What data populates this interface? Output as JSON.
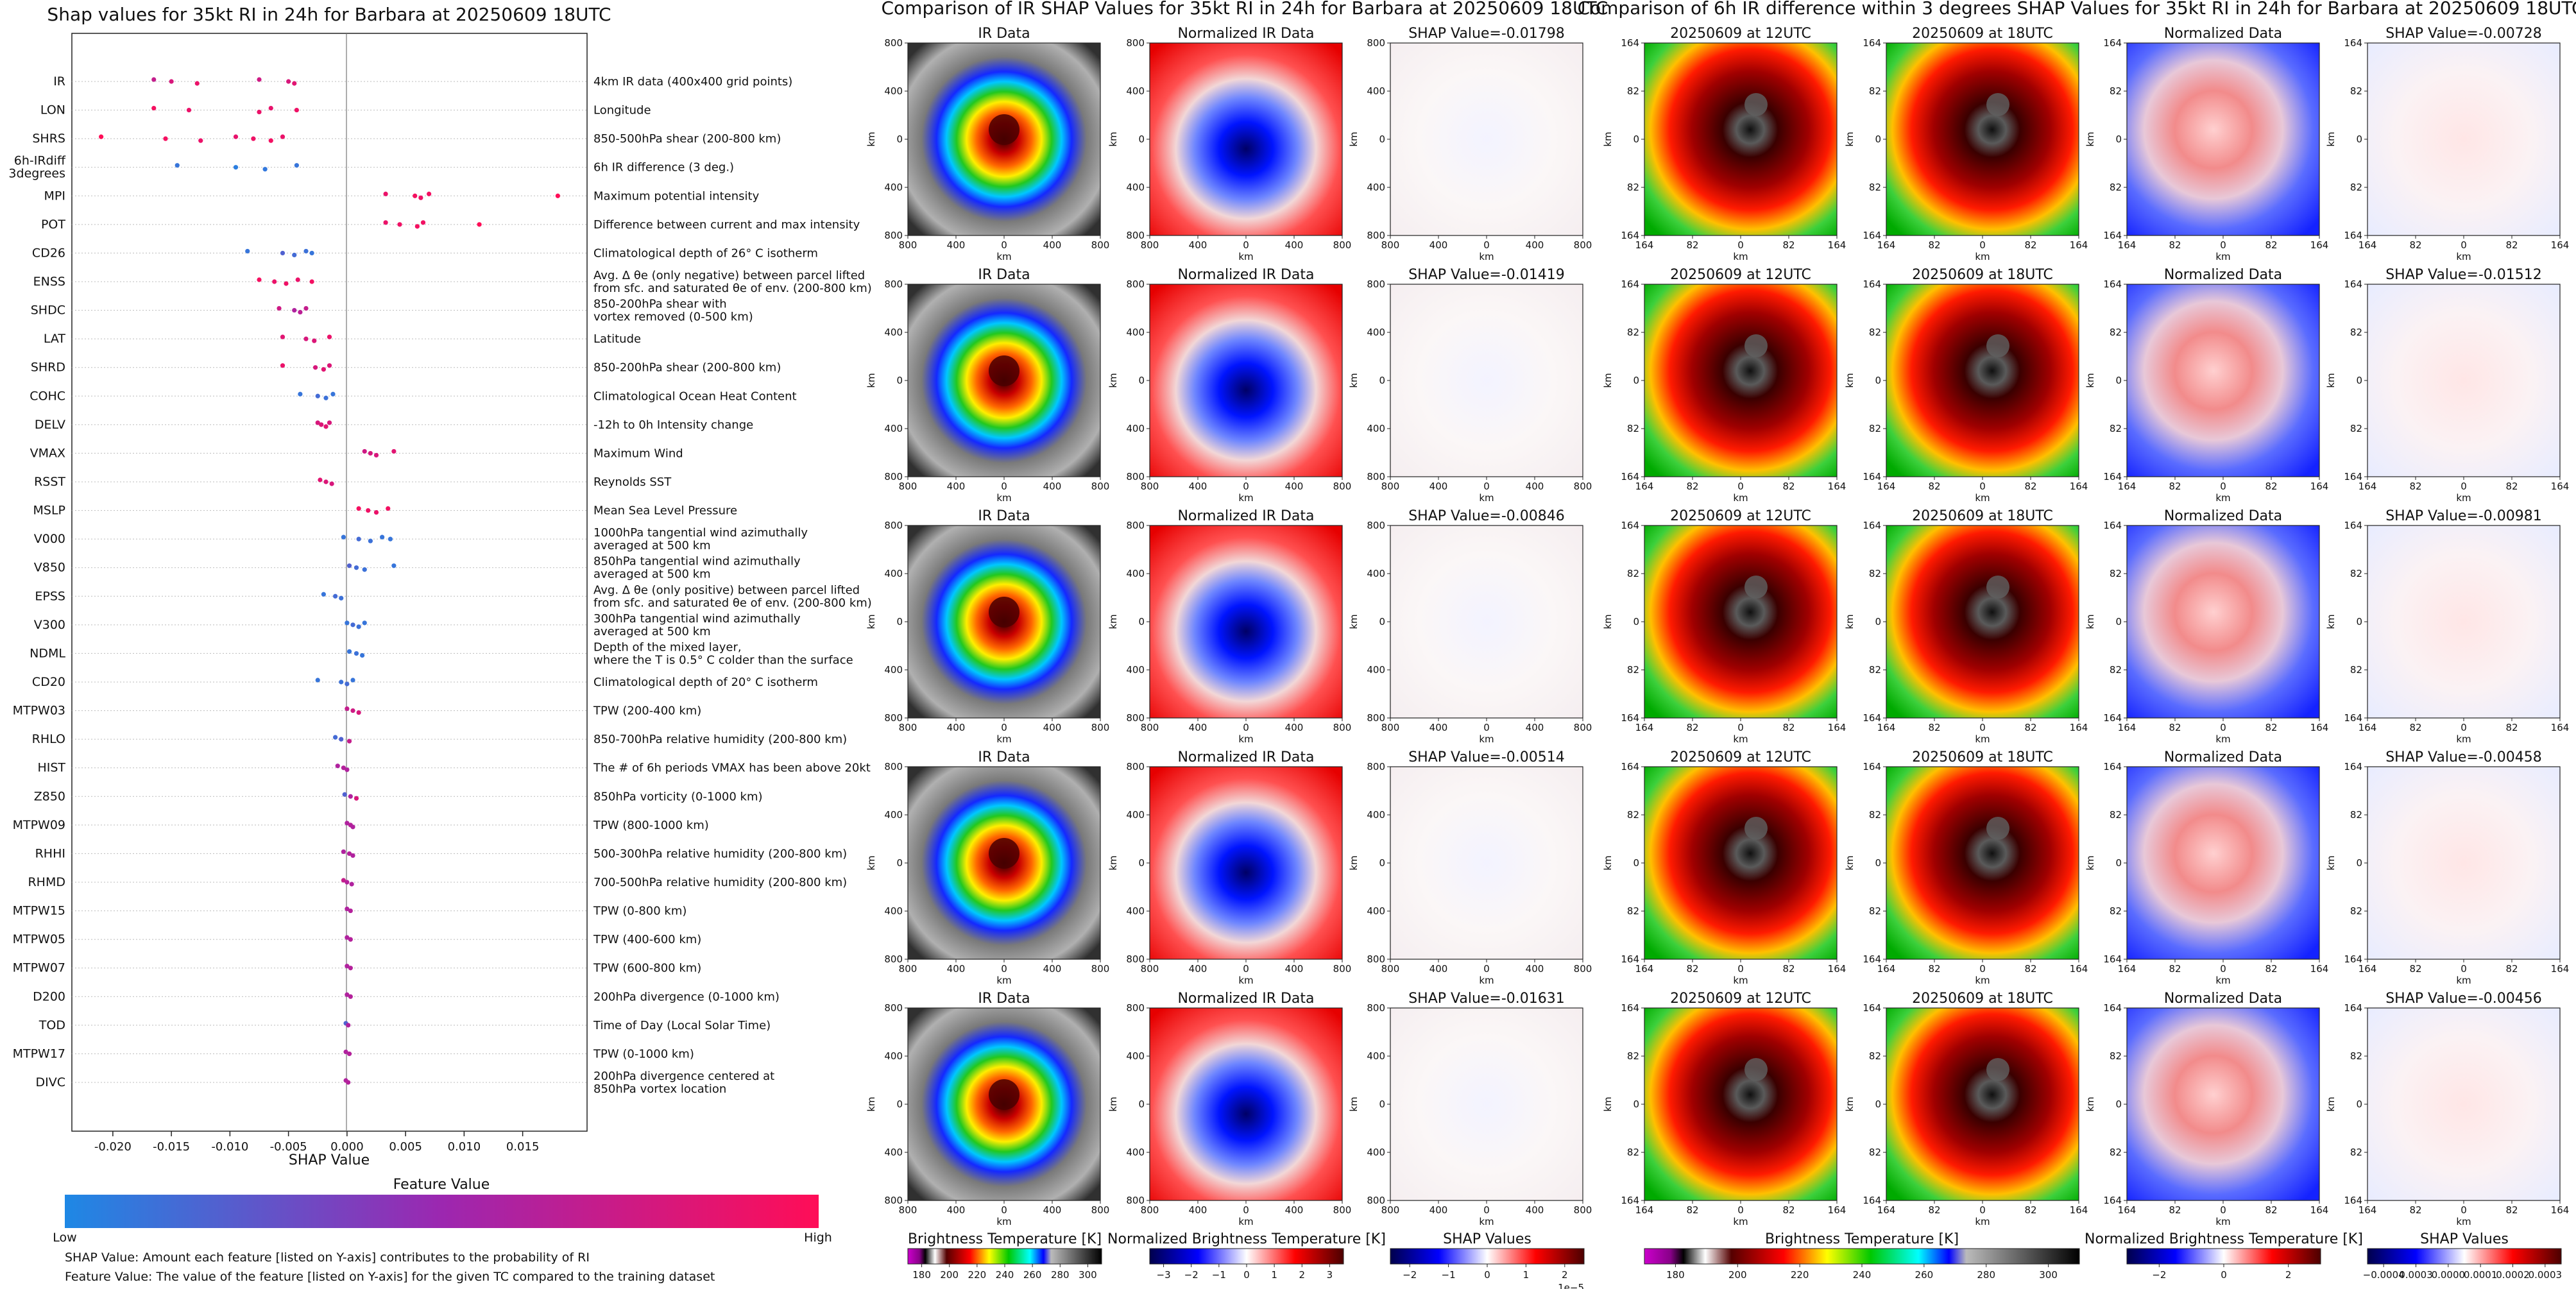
{
  "shap_summary": {
    "title": "Shap values for 35kt RI in 24h for Barbara at 20250609 18UTC",
    "xlabel": "SHAP Value",
    "x_ticks": [
      "-0.020",
      "-0.015",
      "-0.010",
      "-0.005",
      "0.000",
      "0.005",
      "0.010",
      "0.015"
    ],
    "colorbar_title": "Feature Value",
    "colorbar_low": "Low",
    "colorbar_high": "High",
    "colors": {
      "low": "#1e88e5",
      "mid": "#9c27b0",
      "high": "#ff0d57"
    },
    "footnote_1": "SHAP Value: Amount each feature [listed on Y-axis] contributes to the probability of RI",
    "footnote_2": "Feature Value: The value of the feature [listed on Y-axis] for the given TC compared to the training dataset"
  },
  "ir_panel": {
    "title": "Comparison of IR SHAP Values for 35kt RI in 24h for Barbara at 20250609 18UTC",
    "col_titles": [
      "IR Data",
      "Normalized IR Data"
    ],
    "shap_titles": [
      "SHAP Value=-0.01798",
      "SHAP Value=-0.01419",
      "SHAP Value=-0.00846",
      "SHAP Value=-0.00514",
      "SHAP Value=-0.01631"
    ],
    "axis_label": "km",
    "x_ticks": [
      "800",
      "400",
      "0",
      "400",
      "800"
    ],
    "y_ticks": [
      "800",
      "400",
      "0",
      "400",
      "800"
    ],
    "cb1": {
      "label": "Brightness Temperature [K]",
      "ticks": [
        "180",
        "200",
        "220",
        "240",
        "260",
        "280",
        "300"
      ]
    },
    "cb2": {
      "label": "Normalized Brightness Temperature [K]",
      "ticks": [
        "−3",
        "−2",
        "−1",
        "0",
        "1",
        "2",
        "3"
      ]
    },
    "cb3": {
      "label": "SHAP Values",
      "ticks": [
        "−2",
        "−1",
        "0",
        "1",
        "2"
      ],
      "exponent": "1e−5"
    }
  },
  "diff_panel": {
    "title": "Comparison of 6h IR difference within 3 degrees SHAP Values for 35kt RI in 24h for Barbara at 20250609 18UTC",
    "col_titles": [
      "20250609 at 12UTC",
      "20250609 at 18UTC",
      "Normalized Data"
    ],
    "shap_titles": [
      "SHAP Value=-0.00728",
      "SHAP Value=-0.01512",
      "SHAP Value=-0.00981",
      "SHAP Value=-0.00458",
      "SHAP Value=-0.00456"
    ],
    "axis_label": "km",
    "x_ticks": [
      "164",
      "82",
      "0",
      "82",
      "164"
    ],
    "y_ticks": [
      "164",
      "82",
      "0",
      "82",
      "164"
    ],
    "cb1": {
      "label": "Brightness Temperature [K]",
      "ticks": [
        "180",
        "200",
        "220",
        "240",
        "260",
        "280",
        "300"
      ]
    },
    "cb2": {
      "label": "Normalized Brightness Temperature [K]",
      "ticks": [
        "−2",
        "0",
        "2"
      ]
    },
    "cb3": {
      "label": "SHAP Values",
      "ticks": [
        "−0.0004",
        "0.0003",
        "0.0000",
        "0.0001",
        "0.0002",
        "0.0003"
      ]
    }
  },
  "chart_data": {
    "type": "scatter",
    "title": "Shap values for 35kt RI in 24h for Barbara at 20250609 18UTC",
    "xlabel": "SHAP Value",
    "xlim": [
      -0.0235,
      0.0205
    ],
    "features": [
      {
        "name": "IR",
        "description": "4km IR data (400x400 grid points)",
        "points": [
          [
            -0.0165,
            0.7
          ],
          [
            -0.015,
            0.8
          ],
          [
            -0.0128,
            0.9
          ],
          [
            -0.0075,
            0.75
          ],
          [
            -0.005,
            0.8
          ],
          [
            -0.0045,
            0.85
          ]
        ]
      },
      {
        "name": "LON",
        "description": "Longitude",
        "points": [
          [
            -0.0165,
            0.95
          ],
          [
            -0.0135,
            0.9
          ],
          [
            -0.0075,
            0.9
          ],
          [
            -0.0065,
            0.88
          ],
          [
            -0.0043,
            0.92
          ]
        ]
      },
      {
        "name": "SHRS",
        "description": "850-500hPa shear (200-800 km)",
        "points": [
          [
            -0.021,
            1.0
          ],
          [
            -0.0155,
            0.95
          ],
          [
            -0.0125,
            0.9
          ],
          [
            -0.0095,
            0.88
          ],
          [
            -0.008,
            0.92
          ],
          [
            -0.0065,
            0.94
          ],
          [
            -0.0055,
            0.9
          ]
        ]
      },
      {
        "name": "6h-IRdiff\n3degrees",
        "description": "6h IR difference (3 deg.)",
        "points": [
          [
            -0.0145,
            0.1
          ],
          [
            -0.0095,
            0.05
          ],
          [
            -0.007,
            0.08
          ],
          [
            -0.0043,
            0.1
          ]
        ]
      },
      {
        "name": "MPI",
        "description": "Maximum potential intensity",
        "points": [
          [
            0.0033,
            0.9
          ],
          [
            0.0058,
            0.95
          ],
          [
            0.0063,
            0.92
          ],
          [
            0.007,
            0.94
          ],
          [
            0.018,
            1.0
          ]
        ]
      },
      {
        "name": "POT",
        "description": "Difference between current and max intensity",
        "points": [
          [
            0.0033,
            0.9
          ],
          [
            0.0045,
            0.92
          ],
          [
            0.006,
            0.95
          ],
          [
            0.0065,
            0.93
          ],
          [
            0.0113,
            1.0
          ]
        ]
      },
      {
        "name": "CD26",
        "description": "Climatological depth of 26° C isotherm",
        "points": [
          [
            -0.0085,
            0.1
          ],
          [
            -0.0055,
            0.2
          ],
          [
            -0.0045,
            0.15
          ],
          [
            -0.0035,
            0.12
          ],
          [
            -0.003,
            0.1
          ]
        ]
      },
      {
        "name": "ENSS",
        "description": "Avg. Δ θe (only negative) between parcel lifted\nfrom sfc. and saturated θe of env. (200-800 km)",
        "points": [
          [
            -0.0075,
            0.95
          ],
          [
            -0.0062,
            0.9
          ],
          [
            -0.0052,
            0.92
          ],
          [
            -0.0042,
            0.9
          ],
          [
            -0.003,
            0.94
          ]
        ]
      },
      {
        "name": "SHDC",
        "description": "850-200hPa shear with\nvortex removed (0-500 km)",
        "points": [
          [
            -0.0058,
            0.75
          ],
          [
            -0.0045,
            0.6
          ],
          [
            -0.004,
            0.65
          ],
          [
            -0.0035,
            0.7
          ]
        ]
      },
      {
        "name": "LAT",
        "description": "Latitude",
        "points": [
          [
            -0.0055,
            0.85
          ],
          [
            -0.0035,
            0.8
          ],
          [
            -0.0028,
            0.82
          ],
          [
            -0.0015,
            0.9
          ]
        ]
      },
      {
        "name": "SHRD",
        "description": "850-200hPa shear (200-800 km)",
        "points": [
          [
            -0.0055,
            0.9
          ],
          [
            -0.0027,
            0.8
          ],
          [
            -0.002,
            0.85
          ],
          [
            -0.0015,
            0.82
          ]
        ]
      },
      {
        "name": "COHC",
        "description": "Climatological Ocean Heat Content",
        "points": [
          [
            -0.004,
            0.1
          ],
          [
            -0.0025,
            0.15
          ],
          [
            -0.0018,
            0.12
          ],
          [
            -0.0012,
            0.1
          ]
        ]
      },
      {
        "name": "DELV",
        "description": "-12h to 0h Intensity change",
        "points": [
          [
            -0.0025,
            0.8
          ],
          [
            -0.0022,
            0.82
          ],
          [
            -0.0018,
            0.85
          ],
          [
            -0.0015,
            0.8
          ]
        ]
      },
      {
        "name": "VMAX",
        "description": "Maximum Wind",
        "points": [
          [
            0.0015,
            0.75
          ],
          [
            0.002,
            0.78
          ],
          [
            0.0025,
            0.8
          ],
          [
            0.004,
            0.85
          ]
        ]
      },
      {
        "name": "RSST",
        "description": "Reynolds SST",
        "points": [
          [
            -0.0023,
            0.85
          ],
          [
            -0.0018,
            0.82
          ],
          [
            -0.0013,
            0.8
          ]
        ]
      },
      {
        "name": "MSLP",
        "description": "Mean Sea Level Pressure",
        "points": [
          [
            0.001,
            0.95
          ],
          [
            0.0018,
            0.92
          ],
          [
            0.0025,
            0.9
          ],
          [
            0.0035,
            0.94
          ]
        ]
      },
      {
        "name": "V000",
        "description": "1000hPa tangential wind azimuthally\naveraged at 500 km",
        "points": [
          [
            -0.0003,
            0.1
          ],
          [
            0.001,
            0.15
          ],
          [
            0.002,
            0.12
          ],
          [
            0.003,
            0.1
          ],
          [
            0.0037,
            0.1
          ]
        ]
      },
      {
        "name": "V850",
        "description": "850hPa tangential wind azimuthally\naveraged at 500 km",
        "points": [
          [
            0.0002,
            0.2
          ],
          [
            0.0008,
            0.15
          ],
          [
            0.0015,
            0.12
          ],
          [
            0.004,
            0.1
          ]
        ]
      },
      {
        "name": "EPSS",
        "description": "Avg. Δ θe (only positive) between parcel lifted\nfrom sfc. and saturated θe of env. (200-800 km)",
        "points": [
          [
            -0.002,
            0.1
          ],
          [
            -0.001,
            0.15
          ],
          [
            -0.0005,
            0.12
          ]
        ]
      },
      {
        "name": "V300",
        "description": "300hPa tangential wind azimuthally\naveraged at 500 km",
        "points": [
          [
            0.0,
            0.1
          ],
          [
            0.0005,
            0.15
          ],
          [
            0.001,
            0.12
          ],
          [
            0.0015,
            0.1
          ]
        ]
      },
      {
        "name": "NDML",
        "description": "Depth of the mixed layer,\nwhere the T is 0.5° C colder than the surface",
        "points": [
          [
            0.0002,
            0.1
          ],
          [
            0.0008,
            0.12
          ],
          [
            0.0013,
            0.1
          ]
        ]
      },
      {
        "name": "CD20",
        "description": "Climatological depth of 20° C isotherm",
        "points": [
          [
            -0.0025,
            0.1
          ],
          [
            -0.0005,
            0.12
          ],
          [
            0.0,
            0.15
          ],
          [
            0.0005,
            0.1
          ]
        ]
      },
      {
        "name": "MTPW03",
        "description": "TPW (200-400 km)",
        "points": [
          [
            0.0,
            0.7
          ],
          [
            0.0005,
            0.75
          ],
          [
            0.001,
            0.8
          ]
        ]
      },
      {
        "name": "RHLO",
        "description": "850-700hPa relative humidity (200-800 km)",
        "points": [
          [
            -0.001,
            0.15
          ],
          [
            -0.0005,
            0.2
          ],
          [
            0.0002,
            0.7
          ]
        ]
      },
      {
        "name": "HIST",
        "description": "The # of 6h periods VMAX has been above 20kt",
        "points": [
          [
            -0.0008,
            0.6
          ],
          [
            -0.0003,
            0.62
          ],
          [
            0.0,
            0.6
          ]
        ]
      },
      {
        "name": "Z850",
        "description": "850hPa vorticity (0-1000 km)",
        "points": [
          [
            -0.0002,
            0.2
          ],
          [
            0.0003,
            0.6
          ],
          [
            0.0008,
            0.8
          ]
        ]
      },
      {
        "name": "MTPW09",
        "description": "TPW (800-1000 km)",
        "points": [
          [
            0.0,
            0.6
          ],
          [
            0.0003,
            0.62
          ],
          [
            0.0005,
            0.6
          ]
        ]
      },
      {
        "name": "RHHI",
        "description": "500-300hPa relative humidity (200-800 km)",
        "points": [
          [
            -0.0003,
            0.6
          ],
          [
            0.0002,
            0.62
          ],
          [
            0.0005,
            0.6
          ]
        ]
      },
      {
        "name": "RHMD",
        "description": "700-500hPa relative humidity (200-800 km)",
        "points": [
          [
            -0.0003,
            0.7
          ],
          [
            0.0,
            0.62
          ],
          [
            0.0004,
            0.6
          ]
        ]
      },
      {
        "name": "MTPW15",
        "description": "TPW (0-800 km)",
        "points": [
          [
            0.0,
            0.6
          ],
          [
            0.0003,
            0.62
          ]
        ]
      },
      {
        "name": "MTPW05",
        "description": "TPW (400-600 km)",
        "points": [
          [
            0.0,
            0.6
          ],
          [
            0.0003,
            0.62
          ]
        ]
      },
      {
        "name": "MTPW07",
        "description": "TPW (600-800 km)",
        "points": [
          [
            0.0,
            0.6
          ],
          [
            0.0003,
            0.62
          ]
        ]
      },
      {
        "name": "D200",
        "description": "200hPa divergence (0-1000 km)",
        "points": [
          [
            0.0,
            0.6
          ],
          [
            0.0003,
            0.62
          ]
        ]
      },
      {
        "name": "TOD",
        "description": "Time of Day (Local Solar Time)",
        "points": [
          [
            -0.0001,
            0.2
          ],
          [
            0.0001,
            0.6
          ]
        ]
      },
      {
        "name": "MTPW17",
        "description": "TPW (0-1000 km)",
        "points": [
          [
            -0.0001,
            0.6
          ],
          [
            0.0002,
            0.62
          ]
        ]
      },
      {
        "name": "DIVC",
        "description": "200hPa divergence centered at\n850hPa vortex location",
        "points": [
          [
            -0.0001,
            0.6
          ],
          [
            0.0001,
            0.62
          ]
        ]
      }
    ]
  }
}
